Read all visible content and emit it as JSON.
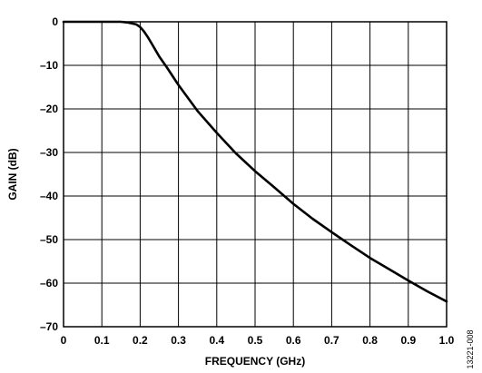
{
  "chart_data": {
    "type": "line",
    "title": "",
    "xlabel": "FREQUENCY (GHz)",
    "ylabel": "GAIN (dB)",
    "xlim": [
      0,
      1.0
    ],
    "ylim": [
      -70,
      0
    ],
    "x_ticks": [
      "0",
      "0.1",
      "0.2",
      "0.3",
      "0.4",
      "0.5",
      "0.6",
      "0.7",
      "0.8",
      "0.9",
      "1.0"
    ],
    "y_ticks": [
      "0",
      "–10",
      "–20",
      "–30",
      "–40",
      "–50",
      "–60",
      "–70"
    ],
    "grid": true,
    "legend": "none",
    "series": [
      {
        "color": "#000000",
        "x": [
          0,
          0.05,
          0.1,
          0.15,
          0.17,
          0.19,
          0.2,
          0.21,
          0.22,
          0.23,
          0.24,
          0.25,
          0.27,
          0.3,
          0.35,
          0.4,
          0.45,
          0.5,
          0.55,
          0.6,
          0.65,
          0.7,
          0.75,
          0.8,
          0.85,
          0.9,
          0.95,
          1.0
        ],
        "y": [
          0,
          0,
          0,
          0,
          -0.2,
          -0.6,
          -1.2,
          -2.2,
          -3.5,
          -5.0,
          -6.5,
          -8.0,
          -10.5,
          -14.5,
          -20.5,
          -25.5,
          -30.2,
          -34.3,
          -38.0,
          -41.8,
          -45.2,
          -48.3,
          -51.3,
          -54.2,
          -56.8,
          -59.4,
          -61.9,
          -64.2
        ]
      }
    ]
  },
  "figure_id": "13221-008"
}
